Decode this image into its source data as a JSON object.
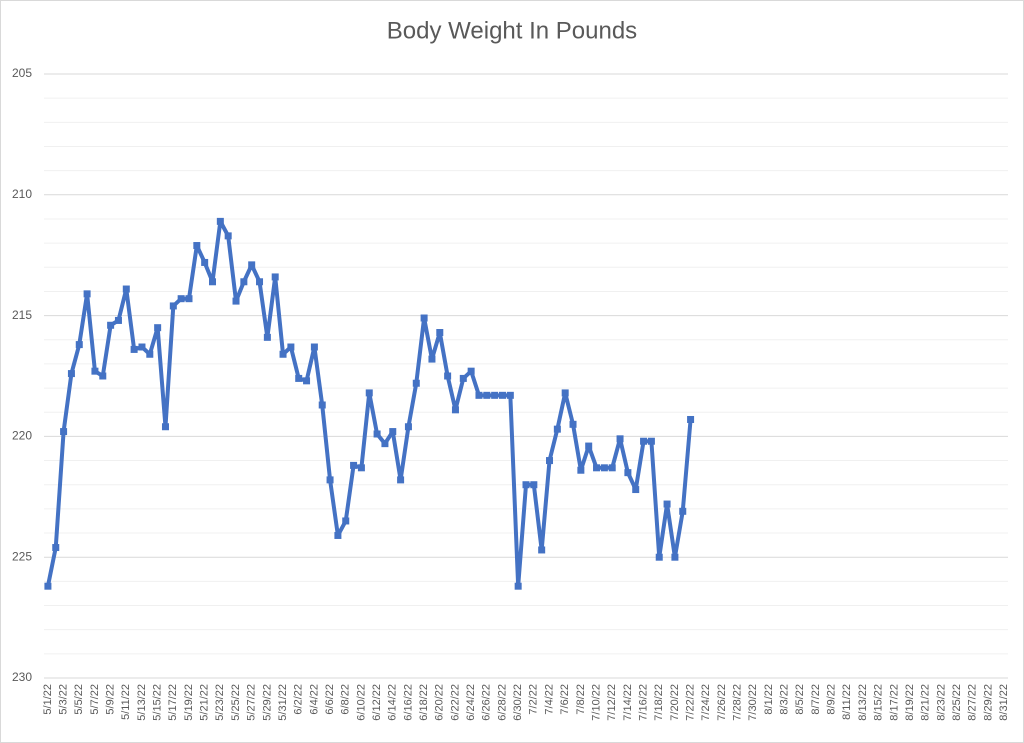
{
  "chart_data": {
    "type": "line",
    "title": "Body Weight In Pounds",
    "categories": [
      "5/1/22",
      null,
      "5/3/22",
      null,
      "5/5/22",
      null,
      "5/7/22",
      null,
      "5/9/22",
      null,
      "5/11/22",
      null,
      "5/13/22",
      null,
      "5/15/22",
      null,
      "5/17/22",
      null,
      "5/19/22",
      null,
      "5/21/22",
      null,
      "5/23/22",
      null,
      "5/25/22",
      null,
      "5/27/22",
      null,
      "5/29/22",
      null,
      "5/31/22",
      null,
      "6/2/22",
      null,
      "6/4/22",
      null,
      "6/6/22",
      null,
      "6/8/22",
      null,
      "6/10/22",
      null,
      "6/12/22",
      null,
      "6/14/22",
      null,
      "6/16/22",
      null,
      "6/18/22",
      null,
      "6/20/22",
      null,
      "6/22/22",
      null,
      "6/24/22",
      null,
      "6/26/22",
      null,
      "6/28/22",
      null,
      "6/30/22",
      null,
      "7/2/22",
      null,
      "7/4/22",
      null,
      "7/6/22",
      null,
      "7/8/22",
      null,
      "7/10/22",
      null,
      "7/12/22",
      null,
      "7/14/22",
      null,
      "7/16/22",
      null,
      "7/18/22",
      null,
      "7/20/22",
      null,
      "7/22/22",
      null,
      "7/24/22",
      null,
      "7/26/22",
      null,
      "7/28/22",
      null,
      "7/30/22",
      null,
      "8/1/22",
      null,
      "8/3/22",
      null,
      "8/5/22",
      null,
      "8/7/22",
      null,
      "8/9/22",
      null,
      "8/11/22",
      null,
      "8/13/22",
      null,
      "8/15/22",
      null,
      "8/17/22",
      null,
      "8/19/22",
      null,
      "8/21/22",
      null,
      "8/23/22",
      null,
      "8/25/22",
      null,
      "8/27/22",
      null,
      "8/29/22",
      null,
      "8/31/22"
    ],
    "series": [
      {
        "color": "#4472c4",
        "values": [
          226.2,
          224.6,
          219.8,
          217.4,
          216.2,
          214.1,
          217.3,
          217.5,
          215.4,
          215.2,
          213.9,
          216.4,
          216.3,
          216.6,
          215.5,
          219.6,
          214.6,
          214.3,
          214.3,
          212.1,
          212.8,
          213.6,
          211.1,
          211.7,
          214.4,
          213.6,
          212.9,
          213.6,
          215.9,
          213.4,
          216.6,
          216.3,
          217.6,
          217.7,
          216.3,
          218.7,
          221.8,
          224.1,
          223.5,
          221.2,
          221.3,
          218.2,
          219.9,
          220.3,
          219.8,
          221.8,
          219.6,
          217.8,
          215.1,
          216.8,
          215.7,
          217.5,
          218.9,
          217.6,
          217.3,
          218.3,
          218.3,
          218.3,
          218.3,
          218.3,
          226.2,
          222.0,
          222.0,
          224.7,
          221.0,
          219.7,
          218.2,
          219.5,
          221.4,
          220.4,
          221.3,
          221.3,
          221.3,
          220.1,
          221.5,
          222.2,
          220.2,
          220.2,
          225.0,
          222.8,
          225.0,
          223.1,
          219.3,
          null,
          null,
          null,
          null,
          null,
          null,
          null,
          null,
          null,
          null,
          null,
          null,
          null,
          null,
          null,
          null,
          null,
          null,
          null,
          null,
          null,
          null,
          null,
          null,
          null,
          null,
          null,
          null,
          null,
          null,
          null,
          null,
          null,
          null,
          null,
          null,
          null,
          null,
          null,
          null
        ]
      }
    ],
    "ylim": [
      205,
      230
    ],
    "yticks": [
      205,
      210,
      215,
      220,
      225,
      230
    ],
    "y_reversed": true,
    "grid": true,
    "minor_grid": true
  }
}
